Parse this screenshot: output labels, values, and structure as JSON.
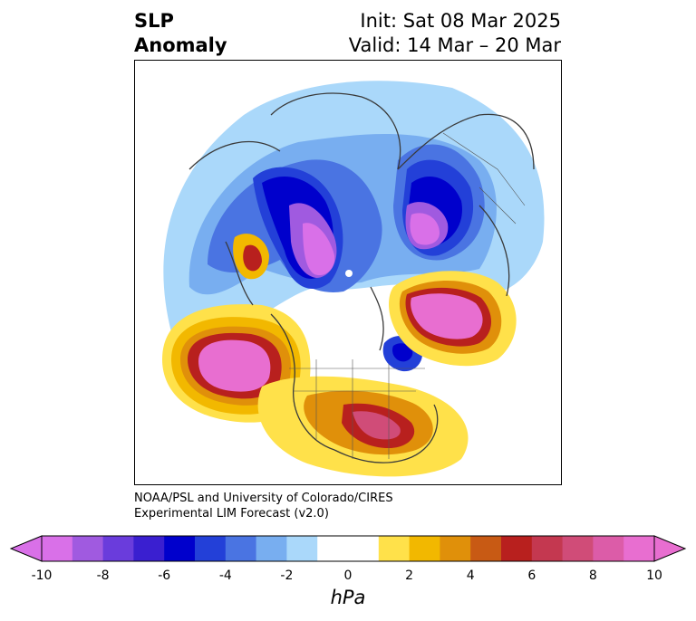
{
  "header": {
    "title_line1": "SLP",
    "title_line2": "Anomaly",
    "init": "Init: Sat 08 Mar 2025",
    "valid": "Valid: 14 Mar – 20 Mar"
  },
  "credit": {
    "line1": "NOAA/PSL and University of Colorado/CIRES",
    "line2": "Experimental LIM Forecast (v2.0)"
  },
  "colorbar": {
    "unit": "hPa",
    "ticks": [
      "-10",
      "-8",
      "-6",
      "-4",
      "-2",
      "0",
      "2",
      "4",
      "6",
      "8",
      "10"
    ],
    "colors": [
      "#d970e8",
      "#a05ae0",
      "#6a3cdc",
      "#3a1fd0",
      "#0000cc",
      "#2340d8",
      "#4a74e2",
      "#78aef0",
      "#aad8fa",
      "#ffffff",
      "#ffffff",
      "#ffe14a",
      "#f2b800",
      "#e0900a",
      "#c85a14",
      "#b8201e",
      "#c43850",
      "#d04c78",
      "#dc5ca8",
      "#e86ed0"
    ],
    "under_color": "#d970e8",
    "over_color": "#e86ed0"
  },
  "map": {
    "projection": "north polar stereographic",
    "field": "SLP anomaly (hPa)"
  }
}
